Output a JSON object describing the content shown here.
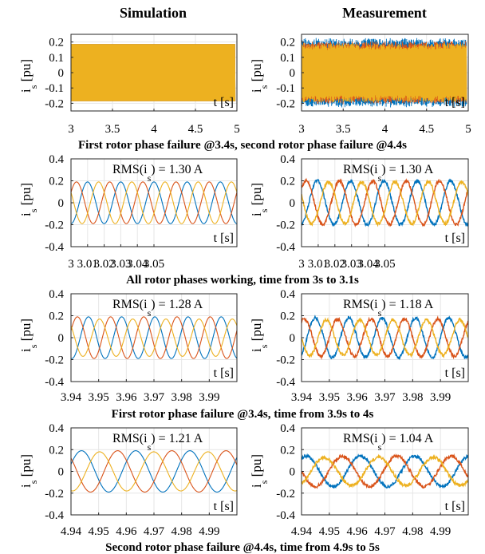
{
  "columns": {
    "left": "Simulation",
    "right": "Measurement"
  },
  "ylabel": {
    "main": "i",
    "sub": "s",
    "unit": "[pu]"
  },
  "xlabel_in_plot": "t [s]",
  "colors": {
    "phase_a": "#0072BD",
    "phase_b": "#D95319",
    "phase_c": "#EDB120",
    "grid": "#e6e6e6",
    "axis": "#262626"
  },
  "chart_data": [
    {
      "id": "row1",
      "type": "line",
      "caption": "First rotor phase failure @3.4s, second rotor phase failure @4.4s",
      "xlim": [
        3,
        5
      ],
      "ylim": [
        -0.25,
        0.25
      ],
      "xticks": [
        "3",
        "3.5",
        "4",
        "4.5",
        "5"
      ],
      "xtick_values": [
        3,
        3.5,
        4,
        4.5,
        5
      ],
      "yticks": [
        "0.2",
        "0.1",
        "0",
        "-0.1",
        "-0.2"
      ],
      "ytick_values": [
        0.2,
        0.1,
        0,
        -0.1,
        -0.2
      ],
      "grid": true,
      "style": "dense",
      "panels": {
        "simulation": {
          "amplitudes": [
            0.19,
            0.19,
            0.19
          ],
          "rms": ""
        },
        "measurement": {
          "amplitudes": [
            0.2,
            0.18,
            0.17
          ],
          "rms": ""
        }
      }
    },
    {
      "id": "row2",
      "type": "line",
      "caption": "All rotor phases working, time from 3s to 3.1s",
      "xlim": [
        3,
        3.1
      ],
      "ylim": [
        -0.4,
        0.4
      ],
      "xticks": [
        "3",
        "3.01",
        "3.02",
        "3.03",
        "3.04",
        "3.05"
      ],
      "xtick_values": [
        3,
        3.01,
        3.02,
        3.03,
        3.04,
        3.05
      ],
      "yticks": [
        "0.4",
        "0.2",
        "0",
        "-0.2",
        "-0.4"
      ],
      "ytick_values": [
        0.4,
        0.2,
        0,
        -0.2,
        -0.4
      ],
      "grid": true,
      "style": "sine",
      "period": 0.02,
      "panels": {
        "simulation": {
          "amplitudes": [
            0.19,
            0.19,
            0.19
          ],
          "phases_deg": [
            -90,
            30,
            150
          ],
          "rms": {
            "pre": "RMS(i",
            "sub": "s",
            "post": ") = 1.30 A"
          }
        },
        "measurement": {
          "amplitudes": [
            0.2,
            0.2,
            0.19
          ],
          "phases_deg": [
            -80,
            40,
            160
          ],
          "rms": {
            "pre": "RMS(i",
            "sub": "s",
            "post": ") = 1.30 A"
          }
        }
      }
    },
    {
      "id": "row3",
      "type": "line",
      "caption": "First rotor phase failure @3.4s, time from 3.9s to 4s",
      "xlim": [
        3.94,
        4.0
      ],
      "ylim": [
        -0.4,
        0.4
      ],
      "xticks": [
        "3.94",
        "3.95",
        "3.96",
        "3.97",
        "3.98",
        "3.99"
      ],
      "xtick_values": [
        3.94,
        3.95,
        3.96,
        3.97,
        3.98,
        3.99
      ],
      "yticks": [
        "0.4",
        "0.2",
        "0",
        "-0.2",
        "-0.4"
      ],
      "ytick_values": [
        0.4,
        0.2,
        0,
        -0.2,
        -0.4
      ],
      "grid": true,
      "style": "sine",
      "period": 0.012,
      "panels": {
        "simulation": {
          "amplitudes": [
            0.19,
            0.19,
            0.17
          ],
          "phases_deg": [
            -100,
            20,
            140
          ],
          "rms": {
            "pre": "RMS(i",
            "sub": "s",
            "post": ") = 1.28 A"
          }
        },
        "measurement": {
          "amplitudes": [
            0.18,
            0.17,
            0.16
          ],
          "phases_deg": [
            -60,
            60,
            180
          ],
          "rms": {
            "pre": "RMS(i",
            "sub": "s",
            "post": ") = 1.18 A"
          }
        }
      }
    },
    {
      "id": "row4",
      "type": "line",
      "caption": "Second rotor phase failure @4.4s, time from 4.9s to 5s",
      "xlim": [
        4.94,
        5.0
      ],
      "ylim": [
        -0.4,
        0.4
      ],
      "xticks": [
        "4.94",
        "4.95",
        "4.96",
        "4.97",
        "4.98",
        "4.99"
      ],
      "xtick_values": [
        4.94,
        4.95,
        4.96,
        4.97,
        4.98,
        4.99
      ],
      "yticks": [
        "0.4",
        "0.2",
        "0",
        "-0.2",
        "-0.4"
      ],
      "ytick_values": [
        0.4,
        0.2,
        0,
        -0.2,
        -0.4
      ],
      "grid": true,
      "style": "sine",
      "period": 0.0196,
      "panels": {
        "simulation": {
          "amplitudes": [
            0.19,
            0.19,
            0.18
          ],
          "phases_deg": [
            20,
            140,
            -100
          ],
          "rms": {
            "pre": "RMS(i",
            "sub": "s",
            "post": ") = 1.21 A"
          }
        },
        "measurement": {
          "amplitudes": [
            0.14,
            0.14,
            0.13
          ],
          "phases_deg": [
            60,
            180,
            -60
          ],
          "rms": {
            "pre": "RMS(i",
            "sub": "s",
            "post": ") = 1.04 A"
          }
        }
      }
    }
  ]
}
